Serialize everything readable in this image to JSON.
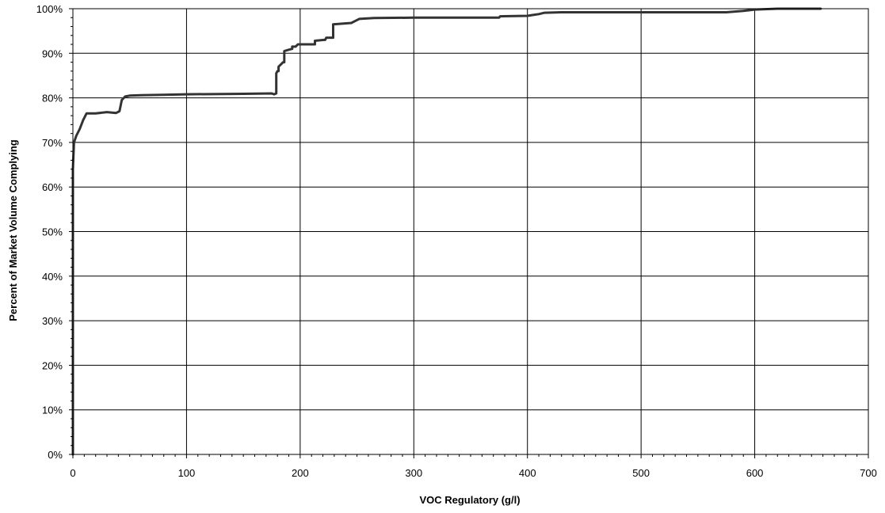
{
  "chart_data": {
    "type": "line",
    "title": "",
    "xlabel": "VOC Regulatory (g/l)",
    "ylabel": "Percent of Market Volume Complying",
    "xlim": [
      0,
      700
    ],
    "ylim": [
      0,
      100
    ],
    "x_ticks": [
      0,
      100,
      200,
      300,
      400,
      500,
      600,
      700
    ],
    "x_tick_labels": [
      "0",
      "100",
      "200",
      "300",
      "400",
      "500",
      "600",
      "700"
    ],
    "y_ticks": [
      0,
      10,
      20,
      30,
      40,
      50,
      60,
      70,
      80,
      90,
      100
    ],
    "y_tick_labels": [
      "0%",
      "10%",
      "20%",
      "30%",
      "40%",
      "50%",
      "60%",
      "70%",
      "80%",
      "90%",
      "100%"
    ],
    "grid": true,
    "line_color": "#333333",
    "series": [
      {
        "points": [
          [
            0,
            0
          ],
          [
            0,
            64
          ],
          [
            0.5,
            67
          ],
          [
            1,
            70
          ],
          [
            3,
            71.5
          ],
          [
            6,
            73
          ],
          [
            9,
            75
          ],
          [
            12,
            76.5
          ],
          [
            15,
            76.5
          ],
          [
            20,
            76.5
          ],
          [
            30,
            76.8
          ],
          [
            38,
            76.6
          ],
          [
            41,
            77
          ],
          [
            43,
            79.5
          ],
          [
            46,
            80.3
          ],
          [
            50,
            80.5
          ],
          [
            60,
            80.6
          ],
          [
            80,
            80.7
          ],
          [
            100,
            80.8
          ],
          [
            150,
            80.9
          ],
          [
            175,
            81
          ],
          [
            177,
            80.8
          ],
          [
            179,
            81
          ],
          [
            179,
            85.5
          ],
          [
            180,
            86
          ],
          [
            181,
            86
          ],
          [
            181,
            87
          ],
          [
            183,
            87.5
          ],
          [
            185,
            88
          ],
          [
            186,
            88
          ],
          [
            186,
            90.5
          ],
          [
            190,
            90.8
          ],
          [
            193,
            91
          ],
          [
            193,
            91.5
          ],
          [
            196,
            91.5
          ],
          [
            198,
            92
          ],
          [
            205,
            92
          ],
          [
            213,
            92
          ],
          [
            213,
            92.8
          ],
          [
            221,
            93
          ],
          [
            222,
            93
          ],
          [
            223,
            93.5
          ],
          [
            229,
            93.5
          ],
          [
            229,
            96.5
          ],
          [
            245,
            96.8
          ],
          [
            248,
            97.2
          ],
          [
            252,
            97.7
          ],
          [
            265,
            97.9
          ],
          [
            300,
            98
          ],
          [
            375,
            98
          ],
          [
            376,
            98.3
          ],
          [
            400,
            98.4
          ],
          [
            405,
            98.6
          ],
          [
            410,
            98.8
          ],
          [
            415,
            99.1
          ],
          [
            430,
            99.2
          ],
          [
            500,
            99.2
          ],
          [
            575,
            99.2
          ],
          [
            590,
            99.5
          ],
          [
            600,
            99.8
          ],
          [
            620,
            100
          ],
          [
            658,
            100
          ]
        ]
      }
    ]
  }
}
